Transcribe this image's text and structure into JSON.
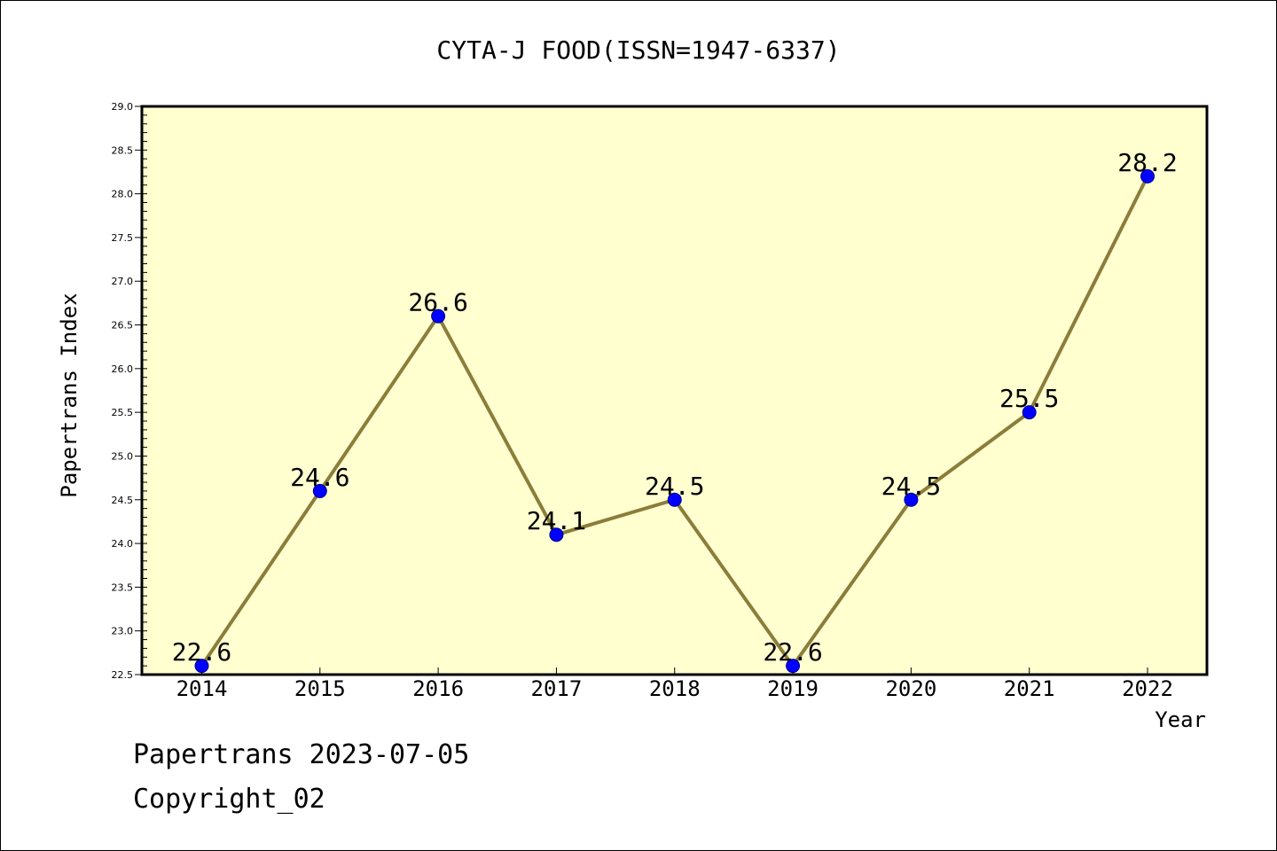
{
  "chart_data": {
    "type": "line",
    "title": "CYTA-J FOOD(ISSN=1947-6337)",
    "xlabel": "Year",
    "ylabel": "Papertrans Index",
    "categories": [
      "2014",
      "2015",
      "2016",
      "2017",
      "2018",
      "2019",
      "2020",
      "2021",
      "2022"
    ],
    "series": [
      {
        "values": [
          22.6,
          24.6,
          26.6,
          24.1,
          24.5,
          22.6,
          24.5,
          25.5,
          28.2
        ],
        "data_labels": [
          "22.6",
          "24.6",
          "26.6",
          "24.1",
          "24.5",
          "22.6",
          "24.5",
          "25.5",
          "28.2"
        ]
      }
    ],
    "ylim": [
      22.5,
      29.0
    ],
    "yticks": [
      "22.5",
      "23.0",
      "23.5",
      "24.0",
      "24.5",
      "25.0",
      "25.5",
      "26.0",
      "26.5",
      "27.0",
      "27.5",
      "28.0",
      "28.5",
      "29.0"
    ],
    "grid": false,
    "legend": "none",
    "colors": {
      "plot_background": "#ffffd0",
      "line": "#8b7d3a",
      "marker": "#0000ff",
      "axis": "#000000"
    }
  },
  "footer": {
    "line1": "Papertrans 2023-07-05",
    "line2": "Copyright_02"
  }
}
